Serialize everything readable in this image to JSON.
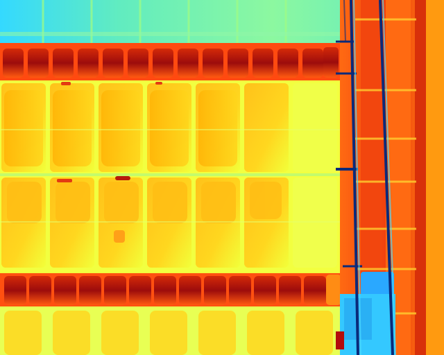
{
  "image": {
    "kind": "thermal-infrared-aerial-view",
    "subject": "solar-panel-array",
    "palette": "jet",
    "colors": {
      "cold": "#30c8ff",
      "cool": "#4ce6c6",
      "warm": "#f4ff3a",
      "hot": "#ffb000",
      "very_hot": "#e43a10",
      "hottest": "#8c0a0a",
      "conduit": "#0a2a7a"
    }
  }
}
